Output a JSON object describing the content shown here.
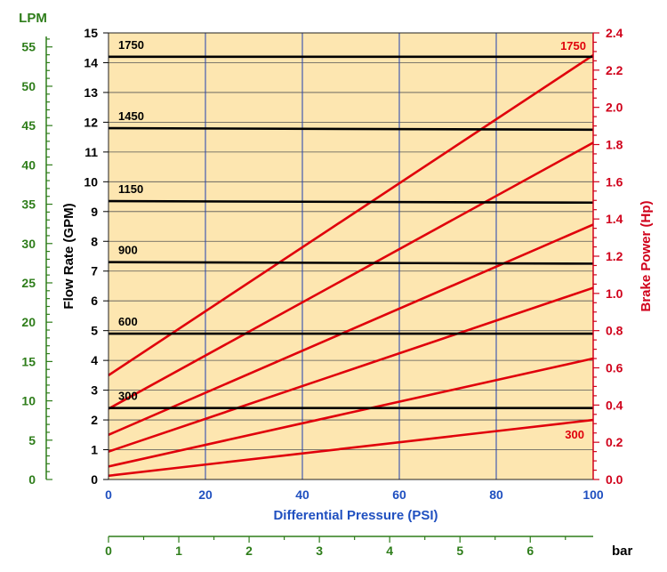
{
  "chart_data": {
    "type": "line",
    "title": "",
    "xlabel": "Differential Pressure (PSI)",
    "ylabel": "Flow Rate (GPM)",
    "y2label": "Brake Power (Hp)",
    "lpm_label": "LPM",
    "bar_label": "bar",
    "xlim": [
      0,
      100
    ],
    "ylim": [
      0,
      15
    ],
    "y2lim": [
      0,
      2.4
    ],
    "lpm_lim": [
      0,
      56.78
    ],
    "bar_lim": [
      0,
      6.895
    ],
    "x_ticks": [
      "0",
      "20",
      "40",
      "60",
      "80",
      "100"
    ],
    "y_ticks": [
      "0",
      "1",
      "2",
      "3",
      "4",
      "5",
      "6",
      "7",
      "8",
      "9",
      "10",
      "11",
      "12",
      "13",
      "14",
      "15"
    ],
    "y2_ticks": [
      "0.0",
      "0.2",
      "0.4",
      "0.6",
      "0.8",
      "1.0",
      "1.2",
      "1.4",
      "1.6",
      "1.8",
      "2.0",
      "2.2",
      "2.4"
    ],
    "lpm_ticks": [
      "0",
      "5",
      "10",
      "15",
      "20",
      "25",
      "30",
      "35",
      "40",
      "45",
      "50",
      "55"
    ],
    "bar_ticks": [
      "0",
      "1",
      "2",
      "3",
      "4",
      "5",
      "6"
    ],
    "flow_series": [
      {
        "name": "1750",
        "y0": 14.2,
        "y1": 14.2
      },
      {
        "name": "1450",
        "y0": 11.8,
        "y1": 11.75
      },
      {
        "name": "1150",
        "y0": 9.35,
        "y1": 9.3
      },
      {
        "name": "900",
        "y0": 7.3,
        "y1": 7.25
      },
      {
        "name": "600",
        "y0": 4.9,
        "y1": 4.9
      },
      {
        "name": "300",
        "y0": 2.4,
        "y1": 2.4
      }
    ],
    "power_series": [
      {
        "label": "1750",
        "p0": 0.56,
        "p1": 2.28
      },
      {
        "label": "",
        "p0": 0.38,
        "p1": 1.81
      },
      {
        "label": "",
        "p0": 0.24,
        "p1": 1.37
      },
      {
        "label": "",
        "p0": 0.15,
        "p1": 1.03
      },
      {
        "label": "",
        "p0": 0.07,
        "p1": 0.65
      },
      {
        "label": "300",
        "p0": 0.02,
        "p1": 0.32
      }
    ],
    "grid": true,
    "colors": {
      "plot_bg": "#fde6b0",
      "flow_line": "#000000",
      "power_line": "#e0000b",
      "power_axis": "#d0021b",
      "grid_major": "#2040b0",
      "grid_minor": "#555555",
      "lpm_axis": "#2e7d1a",
      "x_label": "#2050c0",
      "bar_axis": "#2e7d1a"
    }
  }
}
